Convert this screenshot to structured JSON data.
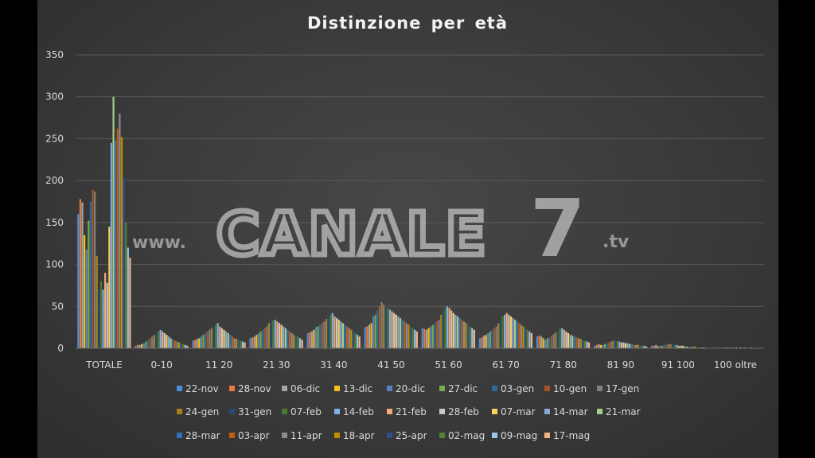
{
  "watermark": {
    "prefix": "www.",
    "brand": "CANALE",
    "number": "7",
    "suffix": ".tv"
  },
  "colors": {
    "background": "#3b3b3b",
    "text": "#d9d9d9",
    "gridline": "#5a5a5a",
    "series": [
      "#4a8fd4",
      "#e8793a",
      "#a5a5a5",
      "#f5bf1a",
      "#5b7fc7",
      "#72ad47",
      "#2c6aa0",
      "#a4552a",
      "#7f7f7f",
      "#a58220",
      "#274978",
      "#4b7a2f",
      "#7fb2e6",
      "#f3a77b",
      "#c7c7c7",
      "#f7d165",
      "#8aa6d8",
      "#a3ce88",
      "#2f75b5",
      "#c55a11",
      "#8d8d8d",
      "#bf8f00",
      "#2f4f8f",
      "#548235",
      "#9dc3e6",
      "#f4b183"
    ]
  },
  "chart_data": {
    "type": "bar",
    "title": "Distinzione  per età",
    "xlabel": "",
    "ylabel": "",
    "ylim": [
      0,
      350
    ],
    "yticks": [
      0,
      50,
      100,
      150,
      200,
      250,
      300,
      350
    ],
    "grid": true,
    "legend_position": "bottom",
    "categories": [
      "TOTALE",
      "0-10",
      "11 20",
      "21 30",
      "31 40",
      "41 50",
      "51 60",
      "61 70",
      "71 80",
      "81 90",
      "91 100",
      "100 oltre"
    ],
    "series": [
      {
        "name": "22-nov",
        "values": [
          160,
          3,
          9,
          12,
          18,
          25,
          24,
          12,
          14,
          3,
          3,
          0
        ]
      },
      {
        "name": "28-nov",
        "values": [
          178,
          4,
          10,
          13,
          19,
          26,
          23,
          13,
          15,
          4,
          3,
          0
        ]
      },
      {
        "name": "06-dic",
        "values": [
          174,
          4,
          11,
          14,
          20,
          28,
          22,
          15,
          14,
          5,
          4,
          0
        ]
      },
      {
        "name": "13-dic",
        "values": [
          135,
          5,
          12,
          16,
          22,
          30,
          24,
          16,
          12,
          4,
          2,
          0
        ]
      },
      {
        "name": "20-dic",
        "values": [
          118,
          6,
          14,
          18,
          25,
          38,
          26,
          18,
          10,
          4,
          3,
          1
        ]
      },
      {
        "name": "27-dic",
        "values": [
          152,
          8,
          16,
          20,
          26,
          40,
          28,
          20,
          12,
          5,
          3,
          0
        ]
      },
      {
        "name": "03-gen",
        "values": [
          175,
          10,
          18,
          22,
          28,
          45,
          30,
          22,
          13,
          6,
          4,
          1
        ]
      },
      {
        "name": "10-gen",
        "values": [
          189,
          12,
          20,
          24,
          30,
          50,
          32,
          24,
          15,
          7,
          4,
          0
        ]
      },
      {
        "name": "17-gen",
        "values": [
          187,
          14,
          22,
          26,
          32,
          55,
          34,
          26,
          17,
          8,
          5,
          1
        ]
      },
      {
        "name": "24-gen",
        "values": [
          110,
          16,
          24,
          30,
          35,
          52,
          40,
          30,
          19,
          9,
          5,
          1
        ]
      },
      {
        "name": "31-gen",
        "values": [
          70,
          18,
          26,
          32,
          38,
          50,
          44,
          34,
          21,
          10,
          5,
          1
        ]
      },
      {
        "name": "07-feb",
        "values": [
          80,
          20,
          28,
          33,
          40,
          48,
          48,
          38,
          23,
          9,
          4,
          1
        ]
      },
      {
        "name": "14-feb",
        "values": [
          70,
          22,
          30,
          34,
          42,
          46,
          50,
          40,
          24,
          8,
          4,
          0
        ]
      },
      {
        "name": "21-feb",
        "values": [
          90,
          20,
          26,
          32,
          38,
          44,
          48,
          42,
          22,
          7,
          3,
          1
        ]
      },
      {
        "name": "28-feb",
        "values": [
          78,
          18,
          24,
          30,
          36,
          42,
          45,
          40,
          20,
          7,
          3,
          0
        ]
      },
      {
        "name": "07-mar",
        "values": [
          145,
          16,
          22,
          28,
          34,
          40,
          42,
          38,
          18,
          6,
          3,
          1
        ]
      },
      {
        "name": "14-mar",
        "values": [
          245,
          14,
          20,
          26,
          32,
          38,
          40,
          36,
          16,
          6,
          2,
          0
        ]
      },
      {
        "name": "21-mar",
        "values": [
          300,
          12,
          18,
          24,
          30,
          36,
          38,
          34,
          15,
          5,
          2,
          1
        ]
      },
      {
        "name": "28-mar",
        "values": [
          248,
          10,
          16,
          22,
          28,
          34,
          36,
          32,
          14,
          5,
          2,
          0
        ]
      },
      {
        "name": "03-apr",
        "values": [
          262,
          9,
          14,
          20,
          26,
          32,
          34,
          30,
          13,
          4,
          2,
          0
        ]
      },
      {
        "name": "11-apr",
        "values": [
          280,
          8,
          12,
          18,
          24,
          30,
          32,
          28,
          12,
          4,
          2,
          1
        ]
      },
      {
        "name": "18-apr",
        "values": [
          252,
          7,
          11,
          16,
          22,
          28,
          30,
          26,
          11,
          4,
          2,
          0
        ]
      },
      {
        "name": "25-apr",
        "values": [
          203,
          6,
          10,
          15,
          20,
          26,
          28,
          24,
          10,
          3,
          1,
          0
        ]
      },
      {
        "name": "02-mag",
        "values": [
          150,
          5,
          9,
          14,
          18,
          24,
          26,
          22,
          9,
          3,
          1,
          0
        ]
      },
      {
        "name": "09-mag",
        "values": [
          120,
          4,
          8,
          12,
          16,
          22,
          24,
          20,
          8,
          3,
          1,
          0
        ]
      },
      {
        "name": "17-mag",
        "values": [
          108,
          3,
          7,
          10,
          14,
          20,
          22,
          18,
          7,
          2,
          1,
          0
        ]
      }
    ]
  }
}
